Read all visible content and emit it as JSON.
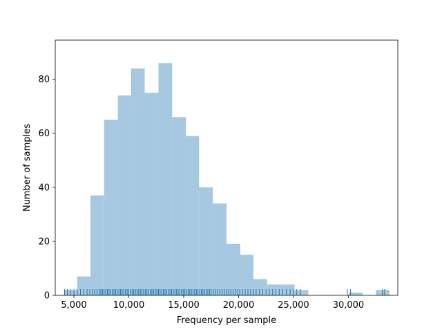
{
  "chart_data": {
    "type": "bar",
    "subtype": "histogram-with-rug",
    "title": "",
    "xlabel": "Frequency per sample",
    "ylabel": "Number of samples",
    "xlim": [
      3300,
      34500
    ],
    "ylim": [
      0,
      94.5
    ],
    "xticks": [
      5000,
      10000,
      15000,
      20000,
      25000,
      30000
    ],
    "xtick_labels": [
      "5,000",
      "10,000",
      "15,000",
      "20,000",
      "25,000",
      "30,000"
    ],
    "yticks": [
      0,
      20,
      40,
      60,
      80
    ],
    "ytick_labels": [
      "0",
      "20",
      "40",
      "60",
      "80"
    ],
    "grid": false,
    "legend": "none",
    "bar_color": "#a6c8e0",
    "rug_color": "#1f77b4",
    "bins": [
      {
        "x0": 4100,
        "x1": 5300,
        "count": 2
      },
      {
        "x0": 5300,
        "x1": 6500,
        "count": 7
      },
      {
        "x0": 6500,
        "x1": 7750,
        "count": 37
      },
      {
        "x0": 7750,
        "x1": 9000,
        "count": 65
      },
      {
        "x0": 9000,
        "x1": 10200,
        "count": 74
      },
      {
        "x0": 10200,
        "x1": 11450,
        "count": 84
      },
      {
        "x0": 11450,
        "x1": 12700,
        "count": 75
      },
      {
        "x0": 12700,
        "x1": 13950,
        "count": 86
      },
      {
        "x0": 13950,
        "x1": 15200,
        "count": 66
      },
      {
        "x0": 15200,
        "x1": 16400,
        "count": 59
      },
      {
        "x0": 16400,
        "x1": 17650,
        "count": 40
      },
      {
        "x0": 17650,
        "x1": 18900,
        "count": 34
      },
      {
        "x0": 18900,
        "x1": 20150,
        "count": 19
      },
      {
        "x0": 20150,
        "x1": 21350,
        "count": 15
      },
      {
        "x0": 21350,
        "x1": 22600,
        "count": 6
      },
      {
        "x0": 22600,
        "x1": 23850,
        "count": 4
      },
      {
        "x0": 23850,
        "x1": 25100,
        "count": 4
      },
      {
        "x0": 25100,
        "x1": 26350,
        "count": 2
      },
      {
        "x0": 26350,
        "x1": 27550,
        "count": 0
      },
      {
        "x0": 27550,
        "x1": 28800,
        "count": 0
      },
      {
        "x0": 28800,
        "x1": 30050,
        "count": 0
      },
      {
        "x0": 30050,
        "x1": 31300,
        "count": 1
      },
      {
        "x0": 31300,
        "x1": 32500,
        "count": 0
      },
      {
        "x0": 32500,
        "x1": 33750,
        "count": 2
      }
    ],
    "rug_values": [
      4150,
      4400,
      4700,
      5000,
      5300,
      5600,
      5900,
      6200,
      6450,
      6700,
      6900,
      7100,
      7300,
      7450,
      7600,
      7750,
      7900,
      8050,
      8200,
      8350,
      8500,
      8650,
      8800,
      8950,
      9100,
      9250,
      9400,
      9550,
      9700,
      9850,
      10000,
      10150,
      10300,
      10450,
      10600,
      10750,
      10900,
      11050,
      11200,
      11350,
      11500,
      11650,
      11800,
      11950,
      12100,
      12250,
      12400,
      12550,
      12700,
      12850,
      13000,
      13150,
      13300,
      13450,
      13600,
      13750,
      13900,
      14050,
      14200,
      14350,
      14500,
      14650,
      14800,
      14950,
      15100,
      15250,
      15400,
      15550,
      15700,
      15850,
      16000,
      16150,
      16300,
      16450,
      16600,
      16750,
      16900,
      17050,
      17200,
      17350,
      17500,
      17700,
      17900,
      18100,
      18300,
      18500,
      18700,
      18900,
      19100,
      19300,
      19500,
      19700,
      19900,
      20100,
      20350,
      20600,
      20850,
      21100,
      21350,
      21600,
      21900,
      22200,
      22500,
      22800,
      23100,
      23400,
      23700,
      24000,
      24350,
      24700,
      25000,
      25300,
      25650,
      29900,
      30200,
      33100,
      33300
    ]
  }
}
